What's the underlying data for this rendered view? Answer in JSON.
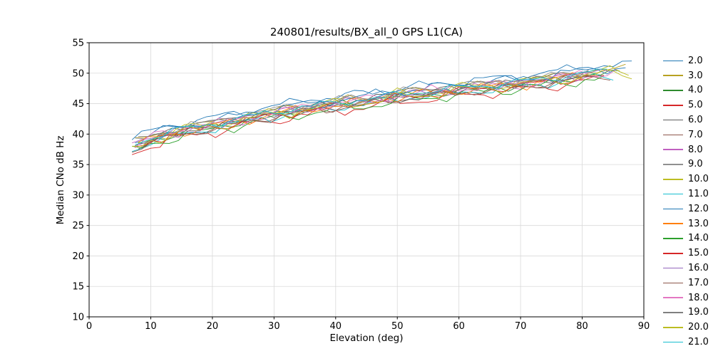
{
  "figure": {
    "background": "#ffffff"
  },
  "chart_data": {
    "type": "line",
    "title": "240801/results/BX_all_0 GPS L1(CA)",
    "xlabel": "Elevation (deg)",
    "ylabel": "Median CNo dB Hz",
    "xlim": [
      0,
      90
    ],
    "ylim": [
      10,
      55
    ],
    "xticks": [
      0,
      10,
      20,
      30,
      40,
      50,
      60,
      70,
      80,
      90
    ],
    "yticks": [
      10,
      15,
      20,
      25,
      30,
      35,
      40,
      45,
      50,
      55
    ],
    "grid": true,
    "grid_color": "#d9d9d9",
    "axis_color": "#000000",
    "line_width": 0.9,
    "legend_position": "right-outside",
    "trend": {
      "x": [
        7,
        9,
        12,
        15,
        18,
        21,
        24,
        27,
        30,
        33,
        36,
        39,
        42,
        45,
        48,
        51,
        54,
        57,
        60,
        63,
        66,
        69,
        72,
        75,
        78,
        81,
        84,
        87,
        90
      ],
      "y": [
        37.8,
        38.8,
        39.8,
        40.5,
        41.0,
        41.6,
        42.2,
        42.8,
        43.3,
        43.9,
        44.3,
        44.7,
        45.1,
        45.5,
        45.9,
        46.3,
        46.7,
        47.0,
        47.3,
        47.6,
        47.9,
        48.2,
        48.5,
        48.9,
        49.4,
        49.8,
        50.0,
        50.1,
        50.1
      ]
    },
    "noise_model": {
      "dx": 1.5,
      "h1": 0.55,
      "f1": 0.85,
      "h2": 0.3,
      "f2": 1.9,
      "h3": 0.15,
      "f3": 3.1
    },
    "series": [
      {
        "label": "2.0",
        "color": "#1f77b4",
        "offset": 1.3,
        "amp": 0.9,
        "phase": 0.0,
        "xstart": 7,
        "xend": 88
      },
      {
        "label": "3.0",
        "color": "#b8a121",
        "offset": 0.4,
        "amp": 1.1,
        "phase": 1.1,
        "xstart": 7.5,
        "xend": 87
      },
      {
        "label": "4.0",
        "color": "#2e8b2e",
        "offset": -0.2,
        "amp": 1.0,
        "phase": 2.2,
        "xstart": 8,
        "xend": 86
      },
      {
        "label": "5.0",
        "color": "#d62728",
        "offset": -1.0,
        "amp": 1.2,
        "phase": 3.3,
        "xstart": 7,
        "xend": 84
      },
      {
        "label": "6.0",
        "color": "#5f5f5f",
        "offset": 0.2,
        "amp": 0.8,
        "phase": 4.4,
        "xstart": 7.5,
        "xend": 82
      },
      {
        "label": "7.0",
        "color": "#8c564b",
        "offset": -0.4,
        "amp": 0.9,
        "phase": 5.5,
        "xstart": 8,
        "xend": 85
      },
      {
        "label": "8.0",
        "color": "#c060c0",
        "offset": 0.0,
        "amp": 1.1,
        "phase": 0.7,
        "xstart": 7,
        "xend": 83
      },
      {
        "label": "9.0",
        "color": "#909090",
        "offset": 0.6,
        "amp": 1.0,
        "phase": 1.8,
        "xstart": 7.5,
        "xend": 81
      },
      {
        "label": "10.0",
        "color": "#bcbd22",
        "offset": 0.3,
        "amp": 1.2,
        "phase": 2.9,
        "xstart": 8,
        "xend": 88
      },
      {
        "label": "11.0",
        "color": "#17becf",
        "offset": -0.5,
        "amp": 0.9,
        "phase": 4.0,
        "xstart": 7,
        "xend": 86
      },
      {
        "label": "12.0",
        "color": "#1f77b4",
        "offset": 0.8,
        "amp": 1.0,
        "phase": 5.1,
        "xstart": 7.5,
        "xend": 87
      },
      {
        "label": "13.0",
        "color": "#ff7f0e",
        "offset": -0.1,
        "amp": 1.1,
        "phase": 0.4,
        "xstart": 8,
        "xend": 80
      },
      {
        "label": "14.0",
        "color": "#2ca02c",
        "offset": -0.8,
        "amp": 1.2,
        "phase": 1.5,
        "xstart": 7,
        "xend": 84
      },
      {
        "label": "15.0",
        "color": "#d62728",
        "offset": -0.3,
        "amp": 1.0,
        "phase": 2.6,
        "xstart": 7.5,
        "xend": 82
      },
      {
        "label": "16.0",
        "color": "#9467bd",
        "offset": 0.1,
        "amp": 0.9,
        "phase": 3.7,
        "xstart": 8,
        "xend": 85
      },
      {
        "label": "17.0",
        "color": "#8c564b",
        "offset": -0.6,
        "amp": 0.8,
        "phase": 4.8,
        "xstart": 7,
        "xend": 83
      },
      {
        "label": "18.0",
        "color": "#e377c2",
        "offset": 0.2,
        "amp": 1.1,
        "phase": 5.9,
        "xstart": 7.5,
        "xend": 86
      },
      {
        "label": "19.0",
        "color": "#7f7f7f",
        "offset": 0.5,
        "amp": 0.9,
        "phase": 1.2,
        "xstart": 8,
        "xend": 81
      },
      {
        "label": "20.0",
        "color": "#bcbd22",
        "offset": -0.2,
        "amp": 1.2,
        "phase": 2.3,
        "xstart": 7,
        "xend": 88
      },
      {
        "label": "21.0",
        "color": "#17becf",
        "offset": 0.3,
        "amp": 0.8,
        "phase": 3.4,
        "xstart": 7.5,
        "xend": 84
      }
    ]
  }
}
